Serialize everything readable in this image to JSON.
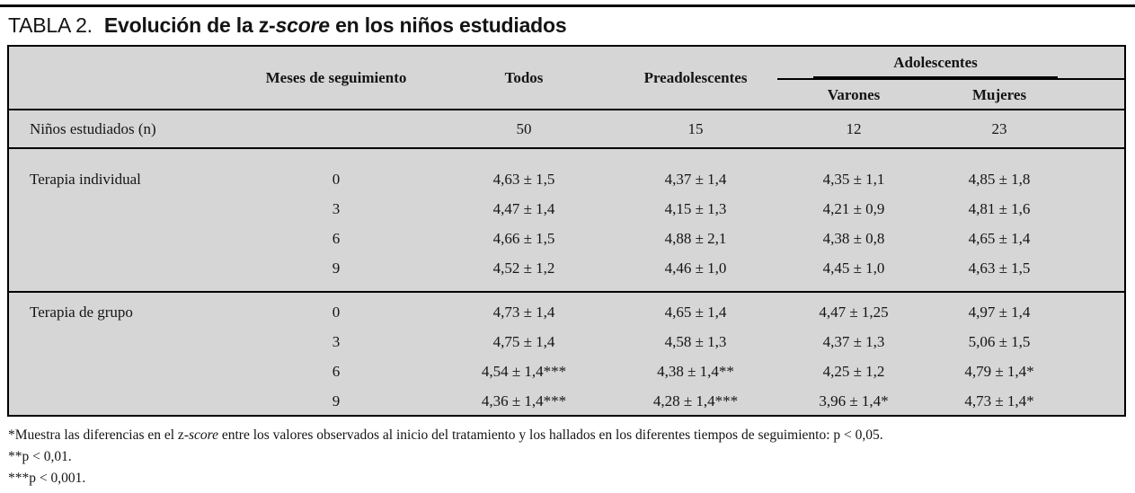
{
  "title": {
    "label": "TABLA 2.",
    "caption_pre": "Evolución de la z-",
    "caption_italic": "score",
    "caption_post": " en los niños estudiados"
  },
  "header": {
    "meses": "Meses de seguimiento",
    "todos": "Todos",
    "preadolescentes": "Preadolescentes",
    "adolescentes": "Adolescentes",
    "varones": "Varones",
    "mujeres": "Mujeres"
  },
  "n_row": {
    "label": "Niños estudiados (n)",
    "values": [
      "50",
      "15",
      "12",
      "23"
    ]
  },
  "sections": [
    {
      "label": "Terapia individual",
      "rows": [
        {
          "meses": "0",
          "values": [
            "4,63 ± 1,5",
            "4,37 ± 1,4",
            "4,35 ± 1,1",
            "4,85 ± 1,8"
          ]
        },
        {
          "meses": "3",
          "values": [
            "4,47 ± 1,4",
            "4,15 ± 1,3",
            "4,21 ± 0,9",
            "4,81 ± 1,6"
          ]
        },
        {
          "meses": "6",
          "values": [
            "4,66 ± 1,5",
            "4,88 ± 2,1",
            "4,38 ± 0,8",
            "4,65 ± 1,4"
          ]
        },
        {
          "meses": "9",
          "values": [
            "4,52 ± 1,2",
            "4,46 ± 1,0",
            "4,45 ± 1,0",
            "4,63 ± 1,5"
          ]
        }
      ]
    },
    {
      "label": "Terapia de grupo",
      "rows": [
        {
          "meses": "0",
          "values": [
            "4,73 ± 1,4",
            "4,65 ± 1,4",
            "4,47 ± 1,25",
            "4,97 ± 1,4"
          ]
        },
        {
          "meses": "3",
          "values": [
            "4,75 ± 1,4",
            "4,58 ± 1,3",
            "4,37 ± 1,3",
            "5,06 ± 1,5"
          ]
        },
        {
          "meses": "6",
          "values": [
            "4,54 ± 1,4***",
            "4,38 ± 1,4**",
            "4,25 ± 1,2",
            "4,79 ± 1,4*"
          ]
        },
        {
          "meses": "9",
          "values": [
            "4,36 ± 1,4***",
            "4,28 ± 1,4***",
            "3,96 ± 1,4*",
            "4,73 ± 1,4*"
          ]
        }
      ]
    }
  ],
  "footnotes": [
    {
      "pre": "*Muestra las diferencias en el z-",
      "italic": "score",
      "post": " entre los valores observados al inicio del tratamiento y los hallados en los diferentes tiempos de seguimiento: p < 0,05."
    },
    {
      "text": "**p < 0,01."
    },
    {
      "text": "***p < 0,001."
    }
  ],
  "colors": {
    "table_background": "#d6d6d6",
    "border": "#000000",
    "text": "#141414",
    "page_background": "#ffffff"
  }
}
